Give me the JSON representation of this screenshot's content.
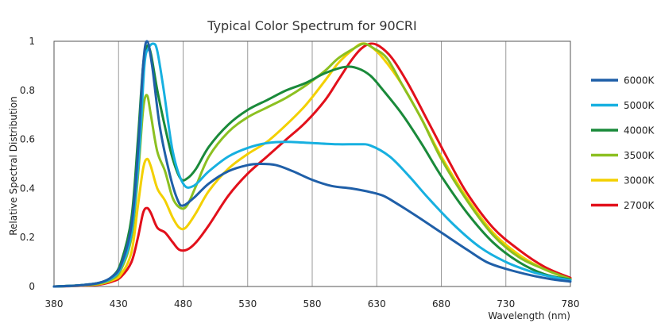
{
  "chart_data": {
    "type": "line",
    "title": "Typical Color Spectrum for 90CRI",
    "xlabel": "Wavelength (nm)",
    "ylabel": "Relative Spectral Distribution",
    "xlim": [
      380,
      780
    ],
    "ylim": [
      0,
      1
    ],
    "xticks": [
      380,
      430,
      480,
      530,
      580,
      630,
      680,
      730,
      780
    ],
    "yticks": [
      0,
      0.2,
      0.4,
      0.6,
      0.8,
      1
    ],
    "ytick_labels": [
      "0",
      "0.2",
      "0.4",
      "0.6",
      "0.8",
      "1"
    ],
    "grid": "vertical",
    "legend_position": "right",
    "series": [
      {
        "name": "6000K",
        "color": "#1f5fa8",
        "points": [
          [
            380,
            0
          ],
          [
            400,
            0.005
          ],
          [
            415,
            0.015
          ],
          [
            425,
            0.04
          ],
          [
            432,
            0.09
          ],
          [
            440,
            0.25
          ],
          [
            445,
            0.55
          ],
          [
            449,
            0.9
          ],
          [
            452,
            1.0
          ],
          [
            456,
            0.9
          ],
          [
            462,
            0.65
          ],
          [
            470,
            0.45
          ],
          [
            476,
            0.35
          ],
          [
            480,
            0.33
          ],
          [
            488,
            0.36
          ],
          [
            500,
            0.42
          ],
          [
            515,
            0.47
          ],
          [
            530,
            0.495
          ],
          [
            540,
            0.5
          ],
          [
            552,
            0.495
          ],
          [
            565,
            0.47
          ],
          [
            580,
            0.435
          ],
          [
            595,
            0.41
          ],
          [
            610,
            0.4
          ],
          [
            625,
            0.385
          ],
          [
            635,
            0.37
          ],
          [
            645,
            0.34
          ],
          [
            660,
            0.29
          ],
          [
            680,
            0.22
          ],
          [
            700,
            0.15
          ],
          [
            715,
            0.1
          ],
          [
            730,
            0.072
          ],
          [
            750,
            0.045
          ],
          [
            765,
            0.03
          ],
          [
            780,
            0.02
          ]
        ]
      },
      {
        "name": "5000K",
        "color": "#17b0e0",
        "points": [
          [
            380,
            0
          ],
          [
            400,
            0.005
          ],
          [
            415,
            0.015
          ],
          [
            425,
            0.035
          ],
          [
            432,
            0.08
          ],
          [
            440,
            0.22
          ],
          [
            446,
            0.55
          ],
          [
            450,
            0.9
          ],
          [
            453,
            0.97
          ],
          [
            457,
            0.99
          ],
          [
            460,
            0.96
          ],
          [
            465,
            0.8
          ],
          [
            472,
            0.55
          ],
          [
            480,
            0.42
          ],
          [
            488,
            0.41
          ],
          [
            500,
            0.47
          ],
          [
            515,
            0.53
          ],
          [
            530,
            0.565
          ],
          [
            545,
            0.585
          ],
          [
            560,
            0.59
          ],
          [
            580,
            0.585
          ],
          [
            600,
            0.58
          ],
          [
            615,
            0.58
          ],
          [
            625,
            0.575
          ],
          [
            640,
            0.53
          ],
          [
            655,
            0.45
          ],
          [
            670,
            0.36
          ],
          [
            690,
            0.25
          ],
          [
            710,
            0.16
          ],
          [
            730,
            0.1
          ],
          [
            750,
            0.06
          ],
          [
            765,
            0.04
          ],
          [
            780,
            0.025
          ]
        ]
      },
      {
        "name": "4000K",
        "color": "#1a8a3a",
        "points": [
          [
            380,
            0
          ],
          [
            400,
            0.005
          ],
          [
            415,
            0.015
          ],
          [
            425,
            0.04
          ],
          [
            432,
            0.1
          ],
          [
            440,
            0.28
          ],
          [
            445,
            0.6
          ],
          [
            449,
            0.9
          ],
          [
            452,
            0.98
          ],
          [
            455,
            0.95
          ],
          [
            460,
            0.8
          ],
          [
            466,
            0.65
          ],
          [
            472,
            0.52
          ],
          [
            478,
            0.44
          ],
          [
            483,
            0.44
          ],
          [
            490,
            0.48
          ],
          [
            500,
            0.57
          ],
          [
            515,
            0.66
          ],
          [
            530,
            0.72
          ],
          [
            545,
            0.76
          ],
          [
            560,
            0.8
          ],
          [
            575,
            0.83
          ],
          [
            590,
            0.87
          ],
          [
            605,
            0.895
          ],
          [
            615,
            0.89
          ],
          [
            625,
            0.86
          ],
          [
            635,
            0.8
          ],
          [
            650,
            0.7
          ],
          [
            665,
            0.58
          ],
          [
            680,
            0.45
          ],
          [
            700,
            0.3
          ],
          [
            720,
            0.18
          ],
          [
            740,
            0.1
          ],
          [
            760,
            0.05
          ],
          [
            780,
            0.028
          ]
        ]
      },
      {
        "name": "3500K",
        "color": "#8cc021",
        "points": [
          [
            380,
            0
          ],
          [
            400,
            0.005
          ],
          [
            415,
            0.012
          ],
          [
            425,
            0.03
          ],
          [
            432,
            0.07
          ],
          [
            440,
            0.2
          ],
          [
            445,
            0.45
          ],
          [
            449,
            0.72
          ],
          [
            452,
            0.78
          ],
          [
            455,
            0.7
          ],
          [
            460,
            0.55
          ],
          [
            466,
            0.47
          ],
          [
            472,
            0.36
          ],
          [
            478,
            0.32
          ],
          [
            483,
            0.33
          ],
          [
            490,
            0.41
          ],
          [
            500,
            0.53
          ],
          [
            515,
            0.63
          ],
          [
            530,
            0.69
          ],
          [
            545,
            0.73
          ],
          [
            560,
            0.77
          ],
          [
            575,
            0.82
          ],
          [
            590,
            0.88
          ],
          [
            600,
            0.93
          ],
          [
            612,
            0.97
          ],
          [
            620,
            0.99
          ],
          [
            628,
            0.97
          ],
          [
            638,
            0.93
          ],
          [
            650,
            0.82
          ],
          [
            665,
            0.68
          ],
          [
            680,
            0.52
          ],
          [
            700,
            0.35
          ],
          [
            720,
            0.21
          ],
          [
            740,
            0.12
          ],
          [
            760,
            0.07
          ],
          [
            780,
            0.03
          ]
        ]
      },
      {
        "name": "3000K",
        "color": "#f3d000",
        "points": [
          [
            380,
            0
          ],
          [
            400,
            0.004
          ],
          [
            415,
            0.01
          ],
          [
            425,
            0.025
          ],
          [
            432,
            0.05
          ],
          [
            440,
            0.14
          ],
          [
            445,
            0.33
          ],
          [
            449,
            0.48
          ],
          [
            452,
            0.52
          ],
          [
            455,
            0.49
          ],
          [
            460,
            0.4
          ],
          [
            466,
            0.35
          ],
          [
            472,
            0.28
          ],
          [
            477,
            0.24
          ],
          [
            482,
            0.24
          ],
          [
            490,
            0.3
          ],
          [
            500,
            0.39
          ],
          [
            515,
            0.48
          ],
          [
            530,
            0.54
          ],
          [
            545,
            0.59
          ],
          [
            560,
            0.66
          ],
          [
            575,
            0.74
          ],
          [
            590,
            0.84
          ],
          [
            600,
            0.91
          ],
          [
            610,
            0.96
          ],
          [
            618,
            0.99
          ],
          [
            625,
            0.98
          ],
          [
            635,
            0.93
          ],
          [
            650,
            0.82
          ],
          [
            665,
            0.68
          ],
          [
            680,
            0.53
          ],
          [
            700,
            0.36
          ],
          [
            720,
            0.22
          ],
          [
            740,
            0.13
          ],
          [
            760,
            0.07
          ],
          [
            780,
            0.03
          ]
        ]
      },
      {
        "name": "2700K",
        "color": "#e2101b",
        "points": [
          [
            380,
            0
          ],
          [
            400,
            0.003
          ],
          [
            415,
            0.008
          ],
          [
            425,
            0.02
          ],
          [
            432,
            0.04
          ],
          [
            440,
            0.1
          ],
          [
            445,
            0.2
          ],
          [
            449,
            0.3
          ],
          [
            452,
            0.32
          ],
          [
            455,
            0.3
          ],
          [
            460,
            0.24
          ],
          [
            466,
            0.22
          ],
          [
            472,
            0.18
          ],
          [
            477,
            0.15
          ],
          [
            483,
            0.15
          ],
          [
            490,
            0.18
          ],
          [
            500,
            0.25
          ],
          [
            515,
            0.37
          ],
          [
            530,
            0.46
          ],
          [
            545,
            0.53
          ],
          [
            560,
            0.6
          ],
          [
            575,
            0.67
          ],
          [
            590,
            0.76
          ],
          [
            600,
            0.84
          ],
          [
            610,
            0.92
          ],
          [
            618,
            0.97
          ],
          [
            625,
            0.99
          ],
          [
            632,
            0.98
          ],
          [
            642,
            0.93
          ],
          [
            655,
            0.82
          ],
          [
            670,
            0.67
          ],
          [
            685,
            0.52
          ],
          [
            700,
            0.38
          ],
          [
            720,
            0.24
          ],
          [
            740,
            0.15
          ],
          [
            760,
            0.08
          ],
          [
            780,
            0.035
          ]
        ]
      }
    ]
  }
}
